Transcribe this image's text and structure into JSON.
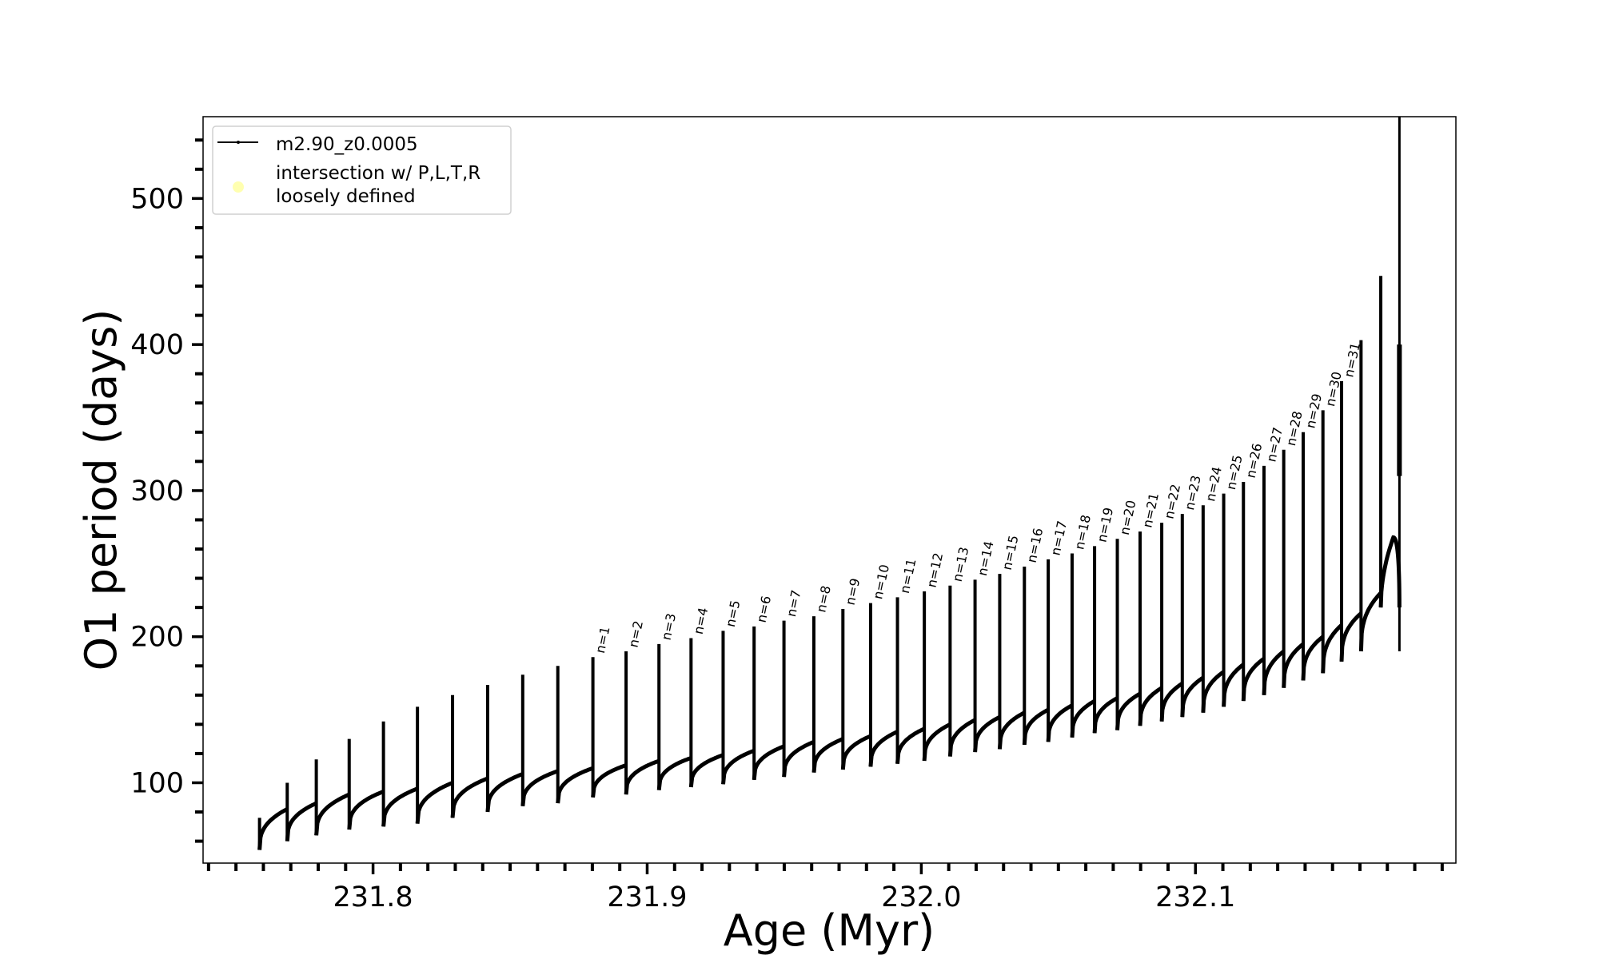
{
  "chart_data": {
    "type": "line",
    "xlabel": "Age (Myr)",
    "ylabel": "O1 period (days)",
    "xlim": [
      231.738,
      232.195
    ],
    "ylim": [
      45,
      556
    ],
    "xticks": [
      231.8,
      231.9,
      232.0,
      232.1
    ],
    "xtick_labels": [
      "231.8",
      "231.9",
      "232.0",
      "232.1"
    ],
    "x_minor_step": 0.01,
    "yticks": [
      100,
      200,
      300,
      400,
      500
    ],
    "ytick_labels": [
      "100",
      "200",
      "300",
      "400",
      "500"
    ],
    "y_minor_step": 20,
    "grid": false,
    "legend": {
      "placement": "top-left",
      "entries": [
        {
          "label": "m2.90_z0.0005",
          "marker": "line",
          "color": "#000000"
        },
        {
          "label_lines": [
            "intersection w/ P,L,T,R",
            "loosely defined"
          ],
          "marker": "circle",
          "color": "#ffffb0"
        }
      ]
    },
    "series_color": "#000000",
    "pulses": {
      "age": [
        231.7586,
        231.7687,
        231.7793,
        231.7913,
        231.8038,
        231.8162,
        231.829,
        231.8418,
        231.8546,
        231.8674,
        231.8802,
        231.8923,
        231.9043,
        231.916,
        231.9277,
        231.939,
        231.9499,
        231.9608,
        231.9714,
        231.9815,
        231.9913,
        232.0011,
        232.0105,
        232.0196,
        232.0286,
        232.0376,
        232.0463,
        232.055,
        232.0632,
        232.0715,
        232.0798,
        232.0877,
        232.0952,
        232.1028,
        232.1103,
        232.1175,
        232.125,
        232.1322,
        232.1393,
        232.1465,
        232.1533,
        232.1604,
        232.1676
      ],
      "peak": [
        76,
        100,
        116,
        130,
        142,
        152,
        160,
        167,
        174,
        180,
        186,
        190,
        195,
        199,
        204,
        207,
        211,
        214,
        219,
        223,
        227,
        231,
        235,
        239,
        243,
        248,
        253,
        257,
        262,
        267,
        272,
        278,
        284,
        290,
        298,
        306,
        317,
        328,
        340,
        355,
        375,
        403,
        447
      ],
      "plateau": [
        72,
        82,
        86,
        92,
        94,
        96,
        100,
        103,
        106,
        108,
        110,
        112,
        115,
        117,
        119,
        122,
        125,
        128,
        130,
        132,
        135,
        137,
        140,
        143,
        145,
        148,
        150,
        153,
        156,
        158,
        161,
        165,
        168,
        172,
        176,
        181,
        185,
        190,
        195,
        200,
        208,
        216,
        230
      ],
      "trough": [
        54,
        60,
        64,
        68,
        70,
        72,
        76,
        80,
        84,
        86,
        90,
        92,
        95,
        97,
        99,
        102,
        104,
        107,
        109,
        111,
        113,
        115,
        118,
        121,
        123,
        126,
        128,
        131,
        134,
        136,
        139,
        142,
        145,
        148,
        152,
        156,
        160,
        165,
        170,
        175,
        183,
        190,
        220
      ]
    },
    "final_arc": {
      "peak_age": 232.1722,
      "peak_value": 268,
      "end_age": 232.1744,
      "end_value": 220
    },
    "final_line": {
      "age": 232.1744,
      "from": 190,
      "to": 556
    },
    "annotations": [
      "n=1",
      "n=2",
      "n=3",
      "n=4",
      "n=5",
      "n=6",
      "n=7",
      "n=8",
      "n=9",
      "n=10",
      "n=11",
      "n=12",
      "n=13",
      "n=14",
      "n=15",
      "n=16",
      "n=17",
      "n=18",
      "n=19",
      "n=20",
      "n=21",
      "n=22",
      "n=23",
      "n=24",
      "n=25",
      "n=26",
      "n=27",
      "n=28",
      "n=29",
      "n=30",
      "n=31"
    ],
    "annotation_first_pulse_index": 10
  }
}
